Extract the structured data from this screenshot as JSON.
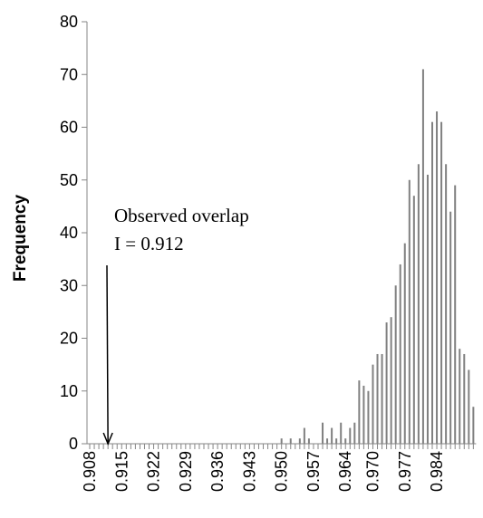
{
  "chart_data": {
    "type": "bar",
    "title": "",
    "xlabel": "",
    "ylabel": "Frequency",
    "ylim": [
      0,
      80
    ],
    "yticks": [
      "0",
      "10",
      "20",
      "30",
      "40",
      "50",
      "60",
      "70",
      "80"
    ],
    "x_start": 0.908,
    "x_step": 0.001,
    "xticks": [
      "0.908",
      "0.915",
      "0.922",
      "0.929",
      "0.936",
      "0.943",
      "0.950",
      "0.957",
      "0.964",
      "0.970",
      "0.977",
      "0.984"
    ],
    "grid": false,
    "legend": "none",
    "bar_color": "#808080",
    "values": [
      0,
      0,
      0,
      0,
      0,
      0,
      0,
      0,
      0,
      0,
      0,
      0,
      0,
      0,
      0,
      0,
      0,
      0,
      0,
      0,
      0,
      0,
      0,
      0,
      0,
      0,
      0,
      0,
      0,
      0,
      0,
      0,
      0,
      0,
      0,
      0,
      0,
      0,
      0,
      0,
      0,
      0,
      1,
      0,
      1,
      0,
      1,
      3,
      1,
      0,
      0,
      4,
      1,
      3,
      1,
      4,
      1,
      3,
      4,
      12,
      11,
      10,
      15,
      17,
      17,
      23,
      24,
      30,
      34,
      38,
      50,
      47,
      53,
      71,
      51,
      61,
      63,
      61,
      53,
      44,
      49,
      18,
      17,
      14,
      7
    ],
    "annotation": {
      "line1": "Observed overlap",
      "line2": "I = 0.912",
      "x": 0.912
    }
  }
}
